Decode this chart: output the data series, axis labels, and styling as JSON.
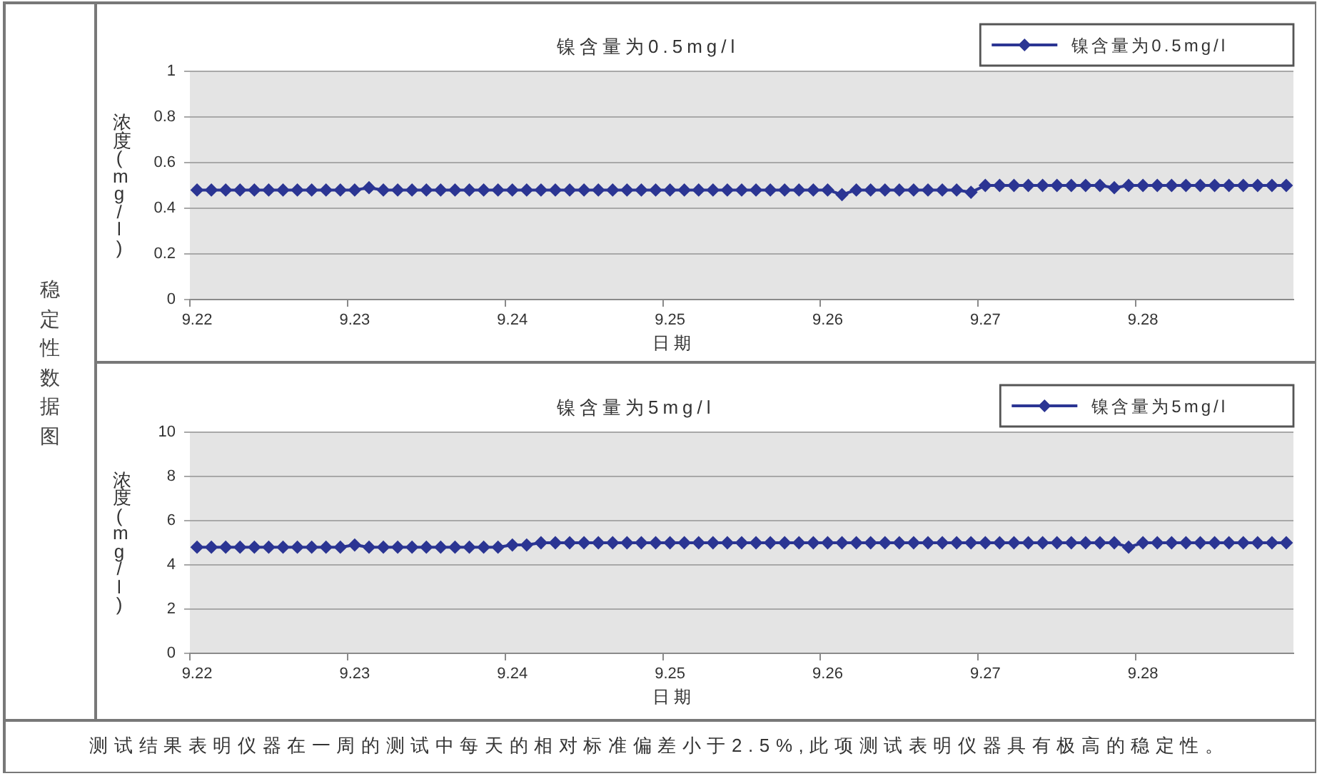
{
  "chart_data": [
    {
      "type": "line",
      "title": "镍含量为0.5mg/l",
      "xlabel": "日期",
      "ylabel": "浓度(mg/l)",
      "legend": "top right",
      "grid": "y",
      "marker": "diamond",
      "line_style": "solid",
      "categories": [
        "9.22",
        null,
        null,
        null,
        null,
        null,
        null,
        null,
        null,
        null,
        null,
        "9.23",
        null,
        null,
        null,
        null,
        null,
        null,
        null,
        null,
        null,
        null,
        "9.24",
        null,
        null,
        null,
        null,
        null,
        null,
        null,
        null,
        null,
        null,
        "9.25",
        null,
        null,
        null,
        null,
        null,
        null,
        null,
        null,
        null,
        null,
        "9.26",
        null,
        null,
        null,
        null,
        null,
        null,
        null,
        null,
        null,
        null,
        "9.27",
        null,
        null,
        null,
        null,
        null,
        null,
        null,
        null,
        null,
        null,
        "9.28",
        null,
        null,
        null,
        null,
        null,
        null,
        null,
        null,
        null,
        null
      ],
      "ylim": [
        0,
        1
      ],
      "yticks": [
        0,
        0.2,
        0.4,
        0.6,
        0.8,
        1
      ],
      "series": [
        {
          "name": "镍含量为0.5mg/l",
          "color": "#2b3593",
          "values": [
            0.48,
            0.48,
            0.48,
            0.48,
            0.48,
            0.48,
            0.48,
            0.48,
            0.48,
            0.48,
            0.48,
            0.48,
            0.49,
            0.48,
            0.48,
            0.48,
            0.48,
            0.48,
            0.48,
            0.48,
            0.48,
            0.48,
            0.48,
            0.48,
            0.48,
            0.48,
            0.48,
            0.48,
            0.48,
            0.48,
            0.48,
            0.48,
            0.48,
            0.48,
            0.48,
            0.48,
            0.48,
            0.48,
            0.48,
            0.48,
            0.48,
            0.48,
            0.48,
            0.48,
            0.48,
            0.46,
            0.48,
            0.48,
            0.48,
            0.48,
            0.48,
            0.48,
            0.48,
            0.48,
            0.47,
            0.5,
            0.5,
            0.5,
            0.5,
            0.5,
            0.5,
            0.5,
            0.5,
            0.5,
            0.49,
            0.5,
            0.5,
            0.5,
            0.5,
            0.5,
            0.5,
            0.5,
            0.5,
            0.5,
            0.5,
            0.5,
            0.5
          ]
        }
      ]
    },
    {
      "type": "line",
      "title": "镍含量为5mg/l",
      "xlabel": "日期",
      "ylabel": "浓度(mg/l)",
      "legend": "top right",
      "grid": "y",
      "marker": "diamond",
      "line_style": "solid",
      "categories": [
        "9.22",
        null,
        null,
        null,
        null,
        null,
        null,
        null,
        null,
        null,
        null,
        "9.23",
        null,
        null,
        null,
        null,
        null,
        null,
        null,
        null,
        null,
        null,
        "9.24",
        null,
        null,
        null,
        null,
        null,
        null,
        null,
        null,
        null,
        null,
        "9.25",
        null,
        null,
        null,
        null,
        null,
        null,
        null,
        null,
        null,
        null,
        "9.26",
        null,
        null,
        null,
        null,
        null,
        null,
        null,
        null,
        null,
        null,
        "9.27",
        null,
        null,
        null,
        null,
        null,
        null,
        null,
        null,
        null,
        null,
        "9.28",
        null,
        null,
        null,
        null,
        null,
        null,
        null,
        null,
        null,
        null
      ],
      "ylim": [
        0,
        10
      ],
      "yticks": [
        0,
        2,
        4,
        6,
        8,
        10
      ],
      "series": [
        {
          "name": "镍含量为5mg/l",
          "color": "#2b3593",
          "values": [
            4.8,
            4.8,
            4.8,
            4.8,
            4.8,
            4.8,
            4.8,
            4.8,
            4.8,
            4.8,
            4.8,
            4.9,
            4.8,
            4.8,
            4.8,
            4.8,
            4.8,
            4.8,
            4.8,
            4.8,
            4.8,
            4.8,
            4.9,
            4.9,
            5.0,
            5.0,
            5.0,
            5.0,
            5.0,
            5.0,
            5.0,
            5.0,
            5.0,
            5.0,
            5.0,
            5.0,
            5.0,
            5.0,
            5.0,
            5.0,
            5.0,
            5.0,
            5.0,
            5.0,
            5.0,
            5.0,
            5.0,
            5.0,
            5.0,
            5.0,
            5.0,
            5.0,
            5.0,
            5.0,
            5.0,
            5.0,
            5.0,
            5.0,
            5.0,
            5.0,
            5.0,
            5.0,
            5.0,
            5.0,
            5.0,
            4.8,
            5.0,
            5.0,
            5.0,
            5.0,
            5.0,
            5.0,
            5.0,
            5.0,
            5.0,
            5.0,
            5.0
          ]
        }
      ]
    },
    {
      "type": "other",
      "title": "稳定性数据图",
      "annotations": [
        "测试结果表明仪器在一周的测试中每天的相对标准偏差小于2.5%,此项测试表明仪器具有极高的稳定性。"
      ]
    }
  ]
}
